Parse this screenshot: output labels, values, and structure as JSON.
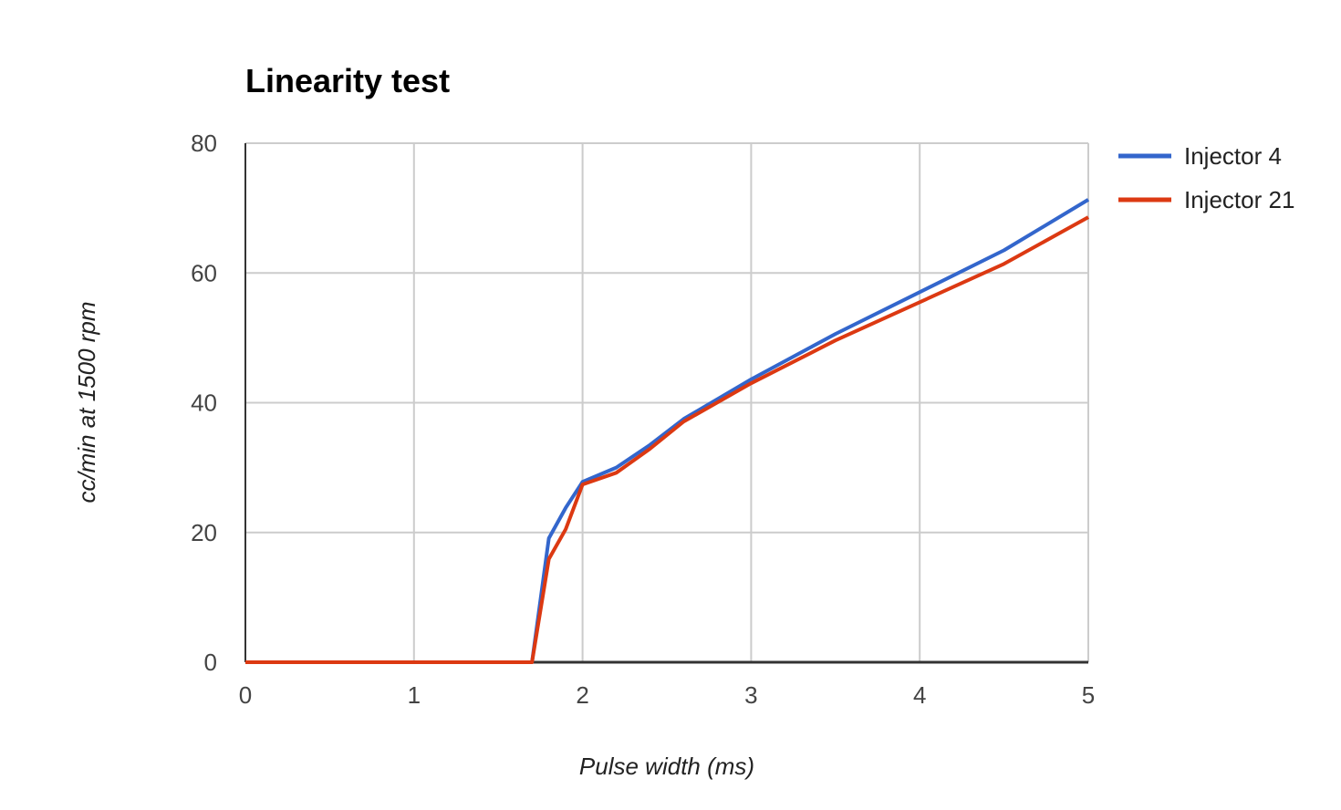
{
  "chart_data": {
    "type": "line",
    "title": "Linearity test",
    "xlabel": "Pulse width (ms)",
    "ylabel": "cc/min at 1500 rpm",
    "xlim": [
      0,
      5
    ],
    "ylim": [
      0,
      80
    ],
    "xticks": [
      "0",
      "1",
      "2",
      "3",
      "4",
      "5"
    ],
    "yticks": [
      "0",
      "20",
      "40",
      "60",
      "80"
    ],
    "grid": true,
    "legend_position": "right",
    "series": [
      {
        "name": "Injector 4",
        "color": "#3366cc",
        "x": [
          0,
          1.7,
          1.8,
          1.9,
          2.0,
          2.2,
          2.4,
          2.6,
          3.0,
          3.5,
          4.5,
          5.0
        ],
        "y": [
          0,
          0,
          19.1,
          23.8,
          27.8,
          30.0,
          33.5,
          37.5,
          43.6,
          50.6,
          63.5,
          71.3
        ]
      },
      {
        "name": "Injector 21",
        "color": "#dc3912",
        "x": [
          0,
          1.7,
          1.8,
          1.9,
          2.0,
          2.2,
          2.4,
          2.6,
          3.0,
          3.5,
          4.5,
          5.0
        ],
        "y": [
          0,
          0,
          15.9,
          20.5,
          27.4,
          29.2,
          32.9,
          37.1,
          43.0,
          49.6,
          61.4,
          68.6
        ]
      }
    ]
  }
}
